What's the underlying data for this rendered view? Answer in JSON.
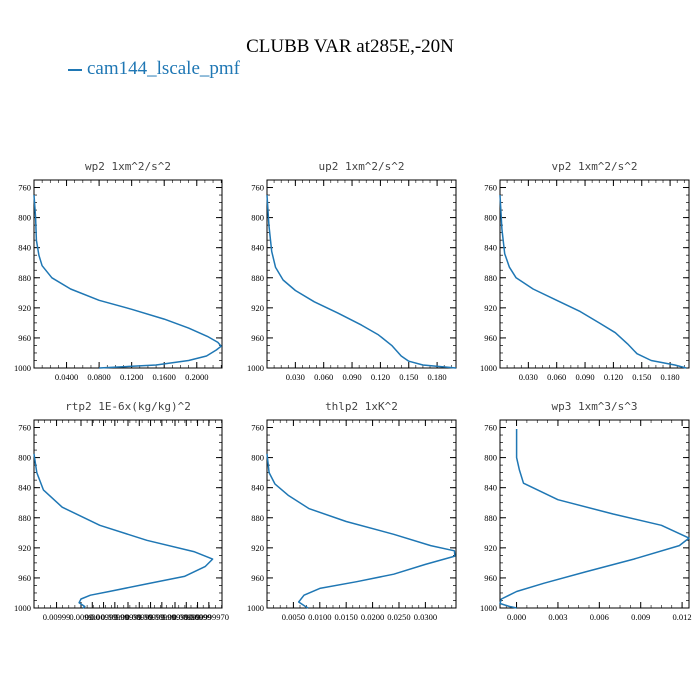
{
  "figure": {
    "title": "CLUBB VAR at285E,-20N",
    "legend_label": "cam144_lscale_pmf",
    "line_color": "#1f77b4"
  },
  "chart_data": [
    {
      "type": "line",
      "title": "wp2  1xm^2/s^2",
      "y_axis": "pressure",
      "ylim": [
        1000,
        750
      ],
      "y_ticks": [
        760,
        800,
        840,
        880,
        920,
        960,
        1000
      ],
      "xlim": [
        0.0,
        0.231
      ],
      "x_ticks": [
        0.04,
        0.08,
        0.12,
        0.16,
        0.2
      ],
      "x_tick_labels": [
        "0.0400",
        "0.0800",
        "0.1200",
        "0.1600",
        "0.2000"
      ],
      "series": [
        {
          "points": [
            [
              0.0,
              770
            ],
            [
              0.002,
              800
            ],
            [
              0.003,
              830
            ],
            [
              0.006,
              850
            ],
            [
              0.01,
              864
            ],
            [
              0.022,
              880
            ],
            [
              0.045,
              895
            ],
            [
              0.08,
              910
            ],
            [
              0.12,
              922
            ],
            [
              0.16,
              935
            ],
            [
              0.19,
              947
            ],
            [
              0.213,
              958
            ],
            [
              0.226,
              966
            ],
            [
              0.23,
              971
            ],
            [
              0.224,
              976
            ],
            [
              0.212,
              984
            ],
            [
              0.19,
              990
            ],
            [
              0.15,
              996
            ],
            [
              0.08,
              1000
            ]
          ]
        }
      ]
    },
    {
      "type": "line",
      "title": "up2  1xm^2/s^2",
      "y_axis": "pressure",
      "ylim": [
        1000,
        750
      ],
      "y_ticks": [
        760,
        800,
        840,
        880,
        920,
        960,
        1000
      ],
      "xlim": [
        0.0,
        0.2
      ],
      "x_ticks": [
        0.03,
        0.06,
        0.09,
        0.12,
        0.15,
        0.18
      ],
      "x_tick_labels": [
        "0.030",
        "0.060",
        "0.090",
        "0.120",
        "0.150",
        "0.180"
      ],
      "series": [
        {
          "points": [
            [
              0.0,
              770
            ],
            [
              0.002,
              810
            ],
            [
              0.005,
              845
            ],
            [
              0.009,
              866
            ],
            [
              0.017,
              883
            ],
            [
              0.03,
              897
            ],
            [
              0.05,
              912
            ],
            [
              0.075,
              927
            ],
            [
              0.1,
              943
            ],
            [
              0.118,
              956
            ],
            [
              0.132,
              970
            ],
            [
              0.142,
              984
            ],
            [
              0.15,
              991
            ],
            [
              0.165,
              996
            ],
            [
              0.2,
              1000
            ]
          ]
        }
      ]
    },
    {
      "type": "line",
      "title": "vp2  1xm^2/s^2",
      "y_axis": "pressure",
      "ylim": [
        1000,
        750
      ],
      "y_ticks": [
        760,
        800,
        840,
        880,
        920,
        960,
        1000
      ],
      "xlim": [
        0.0,
        0.2
      ],
      "x_ticks": [
        0.03,
        0.06,
        0.09,
        0.12,
        0.15,
        0.18
      ],
      "x_tick_labels": [
        "0.030",
        "0.060",
        "0.090",
        "0.120",
        "0.150",
        "0.180"
      ],
      "series": [
        {
          "points": [
            [
              0.0,
              770
            ],
            [
              0.002,
              815
            ],
            [
              0.005,
              848
            ],
            [
              0.01,
              866
            ],
            [
              0.017,
              880
            ],
            [
              0.035,
              895
            ],
            [
              0.06,
              910
            ],
            [
              0.085,
              925
            ],
            [
              0.105,
              940
            ],
            [
              0.122,
              953
            ],
            [
              0.135,
              968
            ],
            [
              0.145,
              981
            ],
            [
              0.16,
              990
            ],
            [
              0.185,
              996
            ],
            [
              0.197,
              1000
            ]
          ]
        }
      ]
    },
    {
      "type": "line",
      "title": "rtp2  1E-6x(kg/kg)^2",
      "y_axis": "pressure",
      "ylim": [
        1000,
        750
      ],
      "y_ticks": [
        760,
        800,
        840,
        880,
        920,
        960,
        1000
      ],
      "xlim": [
        0.0,
        1.0
      ],
      "x_ticks": [
        0.12,
        0.25,
        0.31,
        0.37,
        0.43,
        0.5,
        0.56,
        0.62,
        0.68,
        0.75,
        0.81,
        0.87,
        0.93
      ],
      "x_tick_labels": [
        "0.00999",
        "0.0099",
        "0.00",
        "0.00999",
        "0.00999",
        "0.00999",
        "0.00999",
        "0.00999",
        "0.00999",
        "0.00999",
        "0.00999",
        "0.00999",
        "0.00999970"
      ],
      "series": [
        {
          "points": [
            [
              0.0,
              795
            ],
            [
              0.015,
              820
            ],
            [
              0.05,
              843
            ],
            [
              0.15,
              866
            ],
            [
              0.35,
              890
            ],
            [
              0.6,
              910
            ],
            [
              0.85,
              925
            ],
            [
              0.95,
              935
            ],
            [
              0.91,
              945
            ],
            [
              0.8,
              958
            ],
            [
              0.6,
              968
            ],
            [
              0.4,
              978
            ],
            [
              0.3,
              983
            ],
            [
              0.25,
              988
            ],
            [
              0.24,
              993
            ],
            [
              0.27,
              998
            ],
            [
              0.26,
              1000
            ]
          ]
        }
      ]
    },
    {
      "type": "line",
      "title": "thlp2  1xK^2",
      "y_axis": "pressure",
      "ylim": [
        1000,
        750
      ],
      "y_ticks": [
        760,
        800,
        840,
        880,
        920,
        960,
        1000
      ],
      "xlim": [
        0.0,
        0.0358
      ],
      "x_ticks": [
        0.005,
        0.01,
        0.015,
        0.02,
        0.025,
        0.03
      ],
      "x_tick_labels": [
        "0.0050",
        "0.0100",
        "0.0150",
        "0.0200",
        "0.0250",
        "0.0300"
      ],
      "series": [
        {
          "points": [
            [
              0.0,
              795
            ],
            [
              0.0004,
              820
            ],
            [
              0.0015,
              835
            ],
            [
              0.004,
              850
            ],
            [
              0.008,
              868
            ],
            [
              0.015,
              885
            ],
            [
              0.024,
              902
            ],
            [
              0.031,
              917
            ],
            [
              0.0355,
              924
            ],
            [
              0.0356,
              931
            ],
            [
              0.03,
              942
            ],
            [
              0.024,
              955
            ],
            [
              0.017,
              965
            ],
            [
              0.01,
              974
            ],
            [
              0.007,
              983
            ],
            [
              0.006,
              992
            ],
            [
              0.0075,
              999
            ],
            [
              0.0078,
              1000
            ]
          ]
        }
      ]
    },
    {
      "type": "line",
      "title": "wp3  1xm^3/s^3",
      "y_axis": "pressure",
      "ylim": [
        1000,
        750
      ],
      "y_ticks": [
        760,
        800,
        840,
        880,
        920,
        960,
        1000
      ],
      "xlim": [
        -0.0012,
        0.0125
      ],
      "x_ticks": [
        0.0,
        0.003,
        0.006,
        0.009,
        0.012
      ],
      "x_tick_labels": [
        "0.000",
        "0.003",
        "0.006",
        "0.009",
        "0.012"
      ],
      "series": [
        {
          "points": [
            [
              0.0,
              762
            ],
            [
              0.0,
              780
            ],
            [
              0.0,
              800
            ],
            [
              0.0002,
              816
            ],
            [
              0.0005,
              834
            ],
            [
              0.003,
              856
            ],
            [
              0.007,
              875
            ],
            [
              0.0105,
              890
            ],
            [
              0.0125,
              907
            ],
            [
              0.0118,
              917
            ],
            [
              0.0085,
              935
            ],
            [
              0.005,
              952
            ],
            [
              0.002,
              967
            ],
            [
              0.0,
              978
            ],
            [
              -0.0011,
              988
            ],
            [
              -0.0012,
              994
            ],
            [
              -0.0005,
              998
            ],
            [
              0.0,
              1000
            ]
          ]
        }
      ]
    }
  ]
}
